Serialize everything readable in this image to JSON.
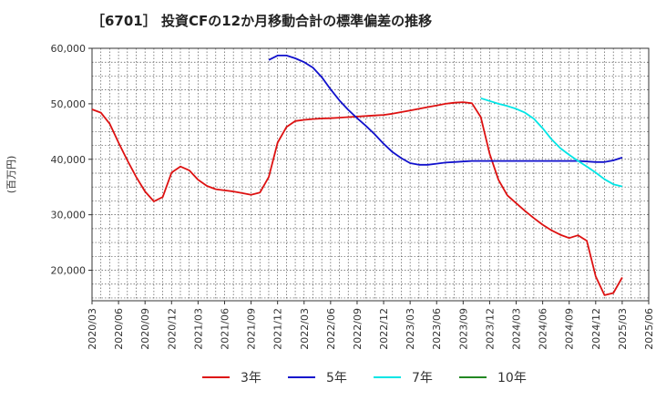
{
  "chart_data": {
    "type": "line",
    "title": "［6701］ 投資CFの12か月移動合計の標準偏差の推移",
    "ylabel": "(百万円)",
    "xlabel": "",
    "ylim": [
      14500,
      60000
    ],
    "yticks": [
      20000,
      30000,
      40000,
      50000,
      60000
    ],
    "ytick_labels": [
      "20,000",
      "30,000",
      "40,000",
      "50,000",
      "60,000"
    ],
    "xticks": [
      "2020/03",
      "2020/06",
      "2020/09",
      "2020/12",
      "2021/03",
      "2021/06",
      "2021/09",
      "2021/12",
      "2022/03",
      "2022/06",
      "2022/09",
      "2022/12",
      "2023/03",
      "2023/06",
      "2023/09",
      "2023/12",
      "2024/03",
      "2024/06",
      "2024/09",
      "2024/12",
      "2025/03",
      "2025/06"
    ],
    "grid": true,
    "legend_position": "bottom",
    "series": [
      {
        "name": "3年",
        "color": "#dd1111",
        "points": [
          [
            "2020/03",
            49000
          ],
          [
            "2020/04",
            48400
          ],
          [
            "2020/05",
            46400
          ],
          [
            "2020/06",
            43000
          ],
          [
            "2020/07",
            39800
          ],
          [
            "2020/08",
            36800
          ],
          [
            "2020/09",
            34200
          ],
          [
            "2020/10",
            32400
          ],
          [
            "2020/11",
            33200
          ],
          [
            "2020/12",
            37600
          ],
          [
            "2021/01",
            38700
          ],
          [
            "2021/02",
            38000
          ],
          [
            "2021/03",
            36300
          ],
          [
            "2021/04",
            35200
          ],
          [
            "2021/05",
            34600
          ],
          [
            "2021/06",
            34400
          ],
          [
            "2021/07",
            34200
          ],
          [
            "2021/08",
            33900
          ],
          [
            "2021/09",
            33600
          ],
          [
            "2021/10",
            34000
          ],
          [
            "2021/11",
            36800
          ],
          [
            "2021/12",
            43000
          ],
          [
            "2022/01",
            45800
          ],
          [
            "2022/02",
            46900
          ],
          [
            "2022/03",
            47100
          ],
          [
            "2022/04",
            47250
          ],
          [
            "2022/05",
            47350
          ],
          [
            "2022/06",
            47400
          ],
          [
            "2022/07",
            47500
          ],
          [
            "2022/08",
            47600
          ],
          [
            "2022/09",
            47700
          ],
          [
            "2022/10",
            47800
          ],
          [
            "2022/11",
            47900
          ],
          [
            "2022/12",
            48000
          ],
          [
            "2023/01",
            48200
          ],
          [
            "2023/02",
            48500
          ],
          [
            "2023/03",
            48800
          ],
          [
            "2023/04",
            49100
          ],
          [
            "2023/05",
            49400
          ],
          [
            "2023/06",
            49700
          ],
          [
            "2023/07",
            50000
          ],
          [
            "2023/08",
            50200
          ],
          [
            "2023/09",
            50300
          ],
          [
            "2023/10",
            50100
          ],
          [
            "2023/11",
            47600
          ],
          [
            "2023/12",
            41000
          ],
          [
            "2024/01",
            36300
          ],
          [
            "2024/02",
            33500
          ],
          [
            "2024/03",
            32100
          ],
          [
            "2024/04",
            30700
          ],
          [
            "2024/05",
            29400
          ],
          [
            "2024/06",
            28200
          ],
          [
            "2024/07",
            27200
          ],
          [
            "2024/08",
            26400
          ],
          [
            "2024/09",
            25800
          ],
          [
            "2024/10",
            26300
          ],
          [
            "2024/11",
            25300
          ],
          [
            "2024/12",
            18900
          ],
          [
            "2025/01",
            15500
          ],
          [
            "2025/02",
            15900
          ],
          [
            "2025/03",
            18700
          ]
        ]
      },
      {
        "name": "5年",
        "color": "#1111cc",
        "points": [
          [
            "2021/11",
            57900
          ],
          [
            "2021/12",
            58700
          ],
          [
            "2022/01",
            58700
          ],
          [
            "2022/02",
            58200
          ],
          [
            "2022/03",
            57500
          ],
          [
            "2022/04",
            56500
          ],
          [
            "2022/05",
            54800
          ],
          [
            "2022/06",
            52600
          ],
          [
            "2022/07",
            50600
          ],
          [
            "2022/08",
            48900
          ],
          [
            "2022/09",
            47400
          ],
          [
            "2022/10",
            46000
          ],
          [
            "2022/11",
            44500
          ],
          [
            "2022/12",
            42800
          ],
          [
            "2023/01",
            41300
          ],
          [
            "2023/02",
            40200
          ],
          [
            "2023/03",
            39300
          ],
          [
            "2023/04",
            39000
          ],
          [
            "2023/05",
            39000
          ],
          [
            "2023/06",
            39200
          ],
          [
            "2023/07",
            39400
          ],
          [
            "2023/08",
            39500
          ],
          [
            "2023/09",
            39600
          ],
          [
            "2023/10",
            39700
          ],
          [
            "2023/11",
            39700
          ],
          [
            "2023/12",
            39700
          ],
          [
            "2024/01",
            39700
          ],
          [
            "2024/02",
            39700
          ],
          [
            "2024/03",
            39700
          ],
          [
            "2024/04",
            39700
          ],
          [
            "2024/05",
            39700
          ],
          [
            "2024/06",
            39700
          ],
          [
            "2024/07",
            39700
          ],
          [
            "2024/08",
            39700
          ],
          [
            "2024/09",
            39700
          ],
          [
            "2024/10",
            39700
          ],
          [
            "2024/11",
            39600
          ],
          [
            "2024/12",
            39500
          ],
          [
            "2025/01",
            39500
          ],
          [
            "2025/02",
            39800
          ],
          [
            "2025/03",
            40300
          ]
        ]
      },
      {
        "name": "7年",
        "color": "#00e5e5",
        "points": [
          [
            "2023/11",
            51000
          ],
          [
            "2023/12",
            50500
          ],
          [
            "2024/01",
            50000
          ],
          [
            "2024/02",
            49600
          ],
          [
            "2024/03",
            49100
          ],
          [
            "2024/04",
            48400
          ],
          [
            "2024/05",
            47300
          ],
          [
            "2024/06",
            45600
          ],
          [
            "2024/07",
            43600
          ],
          [
            "2024/08",
            42000
          ],
          [
            "2024/09",
            40800
          ],
          [
            "2024/10",
            39700
          ],
          [
            "2024/11",
            38700
          ],
          [
            "2024/12",
            37600
          ],
          [
            "2025/01",
            36400
          ],
          [
            "2025/02",
            35500
          ],
          [
            "2025/03",
            35100
          ]
        ]
      },
      {
        "name": "10年",
        "color": "#228822",
        "points": []
      }
    ]
  }
}
